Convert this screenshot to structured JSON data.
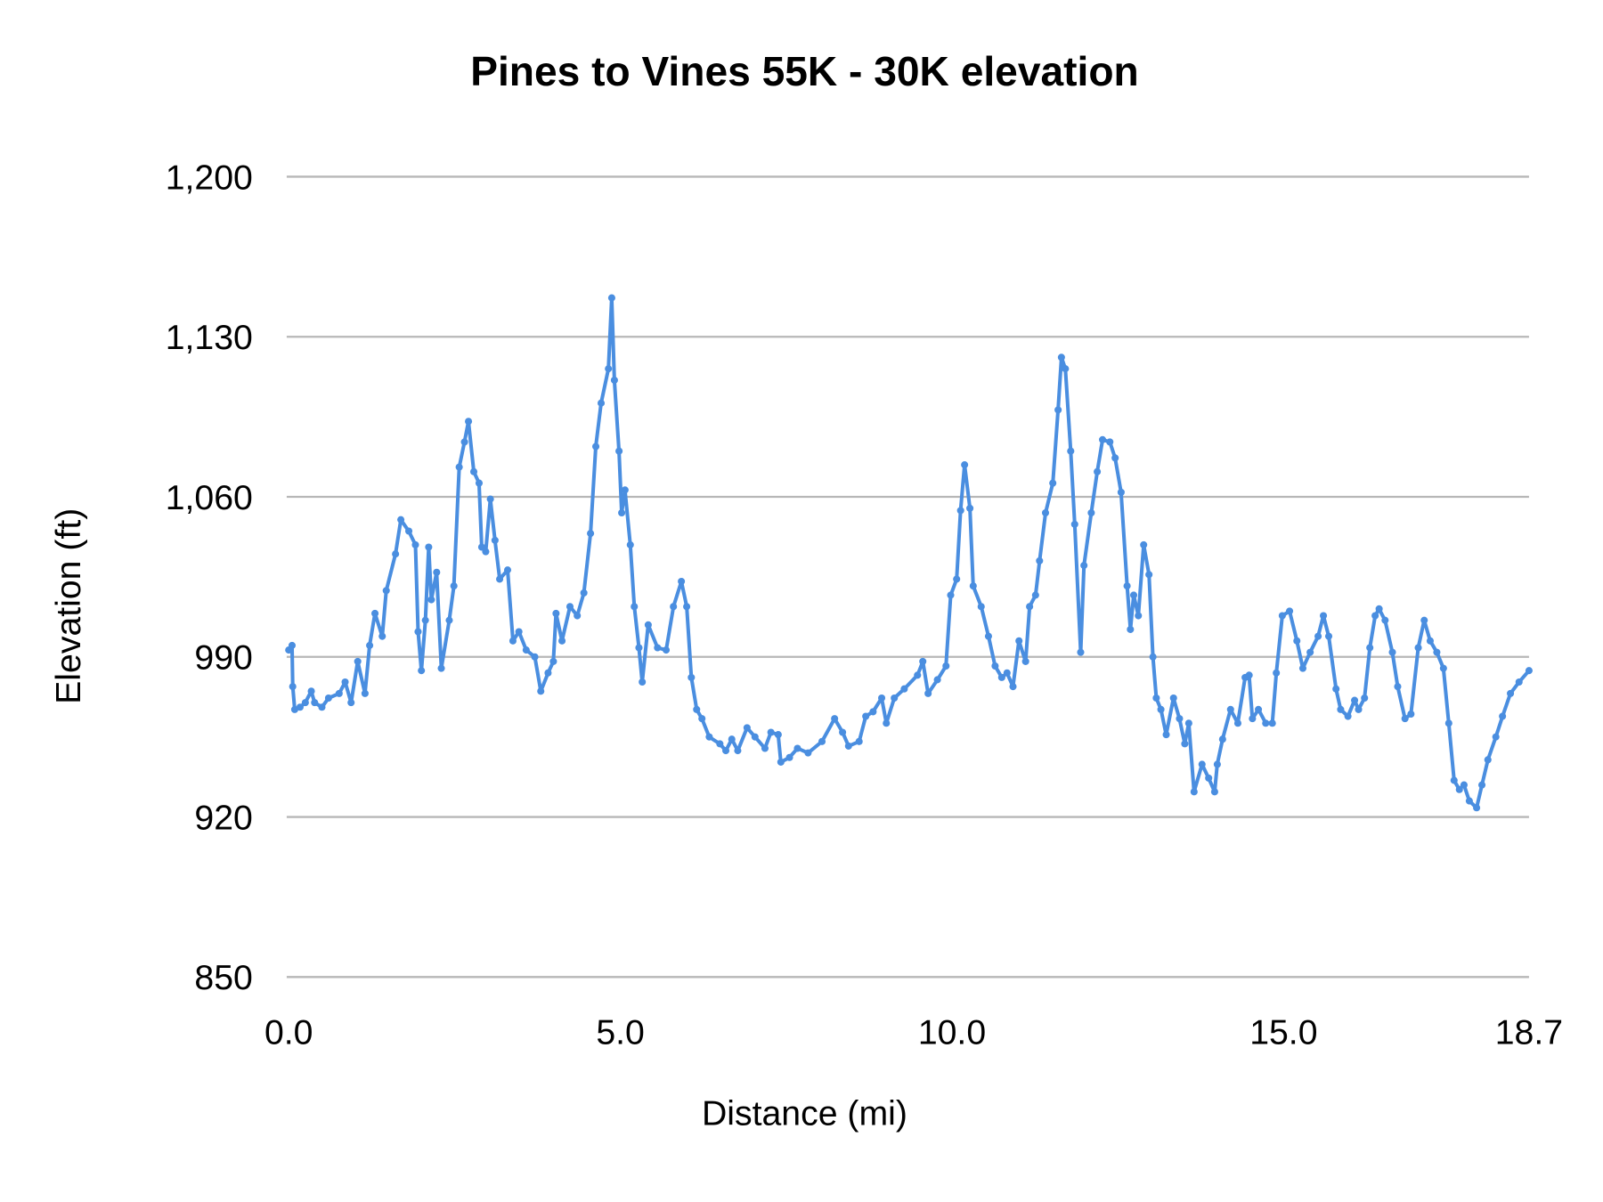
{
  "chart_data": {
    "type": "line",
    "title": "Pines to Vines 55K - 30K elevation",
    "xlabel": "Distance (mi)",
    "ylabel": "Elevation (ft)",
    "xlim": [
      0,
      18.7
    ],
    "ylim": [
      850,
      1200
    ],
    "x_ticks": [
      "0.0",
      "5.0",
      "10.0",
      "15.0",
      "18.7"
    ],
    "x_tick_values": [
      0,
      5,
      10,
      15,
      18.7
    ],
    "y_ticks": [
      "850",
      "920",
      "990",
      "1,060",
      "1,130",
      "1,200"
    ],
    "y_tick_values": [
      850,
      920,
      990,
      1060,
      1130,
      1200
    ],
    "grid": true,
    "legend": "none",
    "series_color": "#4a8ee0",
    "markers": true,
    "x": [
      0,
      0.05,
      0.06,
      0.09,
      0.17,
      0.25,
      0.34,
      0.39,
      0.5,
      0.6,
      0.76,
      0.85,
      0.94,
      1.04,
      1.15,
      1.22,
      1.3,
      1.41,
      1.47,
      1.61,
      1.69,
      1.81,
      1.91,
      1.95,
      2.0,
      2.06,
      2.11,
      2.15,
      2.23,
      2.3,
      2.42,
      2.49,
      2.57,
      2.65,
      2.71,
      2.79,
      2.87,
      2.91,
      2.97,
      3.04,
      3.11,
      3.18,
      3.3,
      3.38,
      3.47,
      3.58,
      3.71,
      3.8,
      3.91,
      3.99,
      4.03,
      4.12,
      4.24,
      4.35,
      4.45,
      4.55,
      4.63,
      4.71,
      4.82,
      4.87,
      4.91,
      4.98,
      5.02,
      5.07,
      5.15,
      5.21,
      5.28,
      5.33,
      5.42,
      5.56,
      5.69,
      5.8,
      5.92,
      6.0,
      6.07,
      6.15,
      6.23,
      6.34,
      6.5,
      6.59,
      6.68,
      6.77,
      6.91,
      7.03,
      7.18,
      7.27,
      7.38,
      7.42,
      7.55,
      7.67,
      7.83,
      8.04,
      8.23,
      8.35,
      8.44,
      8.6,
      8.7,
      8.81,
      8.94,
      9.01,
      9.13,
      9.28,
      9.48,
      9.56,
      9.64,
      9.78,
      9.91,
      9.98,
      10.07,
      10.13,
      10.19,
      10.27,
      10.32,
      10.44,
      10.55,
      10.65,
      10.75,
      10.83,
      10.92,
      11.01,
      11.11,
      11.17,
      11.26,
      11.32,
      11.41,
      11.52,
      11.6,
      11.65,
      11.71,
      11.79,
      11.85,
      11.94,
      11.99,
      12.1,
      12.19,
      12.27,
      12.38,
      12.46,
      12.55,
      12.64,
      12.69,
      12.74,
      12.81,
      12.89,
      12.97,
      13.03,
      13.08,
      13.15,
      13.23,
      13.34,
      13.43,
      13.51,
      13.57,
      13.65,
      13.77,
      13.87,
      13.96,
      14.0,
      14.08,
      14.2,
      14.31,
      14.42,
      14.48,
      14.53,
      14.62,
      14.73,
      14.83,
      14.89,
      14.98,
      15.09,
      15.2,
      15.29,
      15.4,
      15.52,
      15.6,
      15.68,
      15.79,
      15.86,
      15.97,
      16.07,
      16.13,
      16.22,
      16.3,
      16.38,
      16.44,
      16.53,
      16.64,
      16.72,
      16.83,
      16.92,
      17.03,
      17.12,
      17.21,
      17.31,
      17.41,
      17.49,
      17.57,
      17.65,
      17.72,
      17.8,
      17.91,
      17.99,
      18.08,
      18.2,
      18.3,
      18.42,
      18.55,
      18.7
    ],
    "y": [
      993,
      995,
      977,
      967,
      968,
      970,
      975,
      970,
      968,
      972,
      974,
      979,
      970,
      988,
      974,
      995,
      1009,
      999,
      1019,
      1035,
      1050,
      1045,
      1039,
      1001,
      984,
      1006,
      1038,
      1015,
      1027,
      985,
      1006,
      1021,
      1073,
      1084,
      1093,
      1071,
      1066,
      1038,
      1036,
      1059,
      1041,
      1024,
      1028,
      997,
      1001,
      993,
      990,
      975,
      983,
      988,
      1009,
      997,
      1012,
      1008,
      1018,
      1044,
      1082,
      1101,
      1116,
      1147,
      1111,
      1080,
      1053,
      1063,
      1039,
      1012,
      994,
      979,
      1004,
      994,
      993,
      1012,
      1023,
      1012,
      981,
      967,
      963,
      955,
      952,
      949,
      954,
      949,
      959,
      955,
      950,
      957,
      956,
      944,
      946,
      950,
      948,
      953,
      963,
      957,
      951,
      953,
      964,
      966,
      972,
      961,
      972,
      976,
      982,
      988,
      974,
      980,
      986,
      1017,
      1024,
      1054,
      1074,
      1055,
      1021,
      1012,
      999,
      986,
      981,
      983,
      977,
      997,
      988,
      1012,
      1017,
      1032,
      1053,
      1066,
      1098,
      1121,
      1116,
      1080,
      1048,
      992,
      1030,
      1053,
      1071,
      1085,
      1084,
      1077,
      1062,
      1021,
      1002,
      1017,
      1008,
      1039,
      1026,
      990,
      972,
      967,
      956,
      972,
      963,
      952,
      961,
      931,
      943,
      937,
      931,
      943,
      954,
      967,
      961,
      981,
      982,
      963,
      967,
      961,
      961,
      983,
      1008,
      1010,
      997,
      985,
      992,
      999,
      1008,
      999,
      976,
      967,
      964,
      971,
      967,
      972,
      994,
      1008,
      1011,
      1006,
      992,
      977,
      963,
      965,
      994,
      1006,
      997,
      992,
      985,
      961,
      936,
      932,
      934,
      927,
      924,
      934,
      945,
      955,
      964,
      974,
      979,
      984
    ]
  }
}
